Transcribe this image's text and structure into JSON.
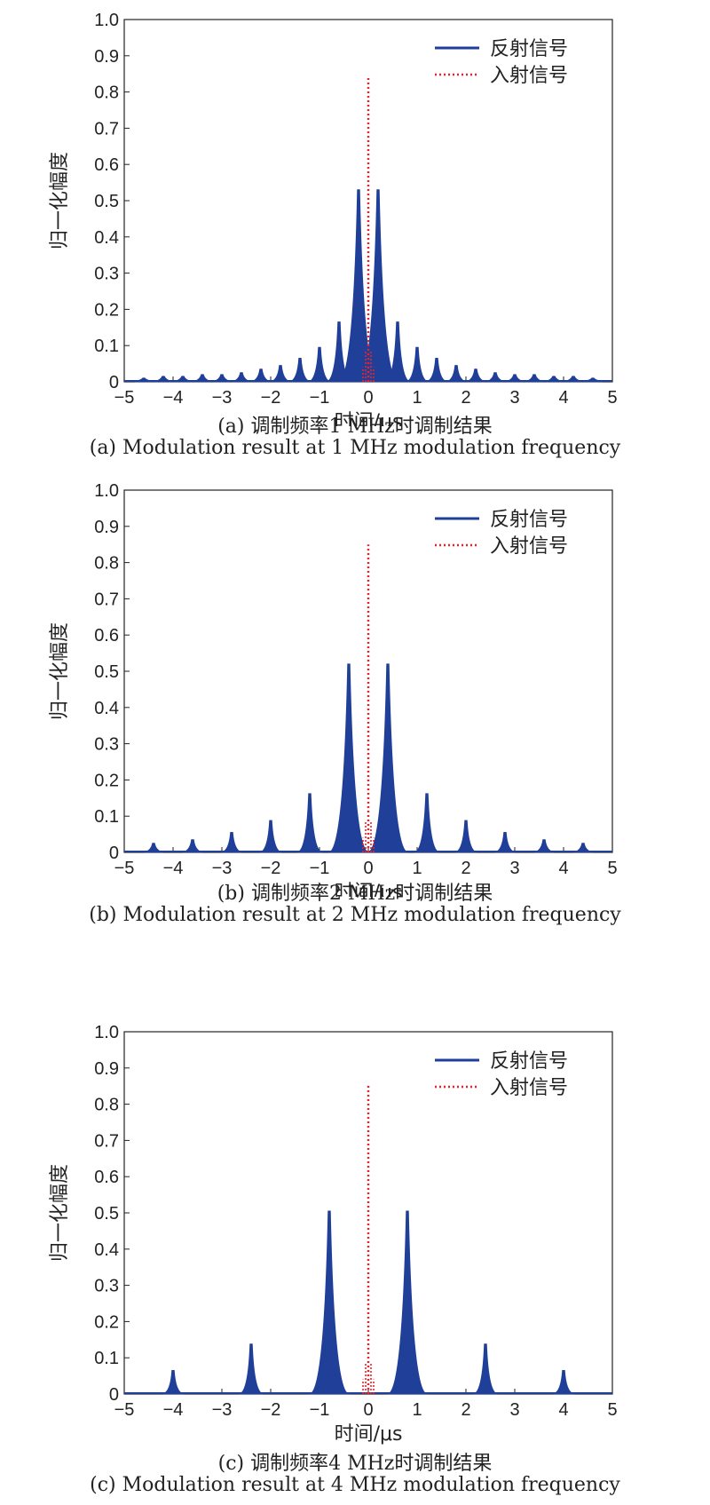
{
  "colors": {
    "reflected": "#1f3f99",
    "incident": "#e8222a",
    "axis": "#222222"
  },
  "panels": [
    {
      "caption_cn": "(a) 调制频率1 MHz时调制结果",
      "caption_en": "(a) Modulation result at 1 MHz modulation frequency",
      "chart_data": {
        "type": "line",
        "xlabel": "时间/μs",
        "ylabel": "归一化幅度",
        "xlim": [
          -5,
          5
        ],
        "ylim": [
          0,
          1.0
        ],
        "xticks": [
          "−5",
          "−4",
          "−3",
          "−2",
          "−1",
          "0",
          "1",
          "2",
          "3",
          "4",
          "5"
        ],
        "yticks": [
          "0",
          "0.1",
          "0.2",
          "0.3",
          "0.4",
          "0.5",
          "0.6",
          "0.7",
          "0.8",
          "0.9",
          "1.0"
        ],
        "legend_position": "top-right",
        "series": [
          {
            "name": "反射信号",
            "style": "solid",
            "peaks_x": [
              -4.6,
              -4.2,
              -3.8,
              -3.4,
              -3.0,
              -2.6,
              -2.2,
              -1.8,
              -1.4,
              -1.0,
              -0.6,
              -0.2,
              0.2,
              0.6,
              1.0,
              1.4,
              1.8,
              2.2,
              2.6,
              3.0,
              3.4,
              3.8,
              4.2,
              4.6
            ],
            "peaks_y": [
              0.01,
              0.015,
              0.015,
              0.02,
              0.02,
              0.025,
              0.035,
              0.045,
              0.065,
              0.095,
              0.165,
              0.53,
              0.53,
              0.165,
              0.095,
              0.065,
              0.045,
              0.035,
              0.025,
              0.02,
              0.02,
              0.015,
              0.015,
              0.01
            ]
          },
          {
            "name": "入射信号",
            "style": "dotted",
            "peaks_x": [
              0
            ],
            "peaks_y": [
              0.84
            ]
          }
        ]
      }
    },
    {
      "caption_cn": "(b) 调制频率2 MHz时调制结果",
      "caption_en": "(b) Modulation result at 2 MHz modulation frequency",
      "chart_data": {
        "type": "line",
        "xlabel": "时间/μs",
        "ylabel": "归一化幅度",
        "xlim": [
          -5,
          5
        ],
        "ylim": [
          0,
          1.0
        ],
        "xticks": [
          "−5",
          "−4",
          "−3",
          "−2",
          "−1",
          "0",
          "1",
          "2",
          "3",
          "4",
          "5"
        ],
        "yticks": [
          "0",
          "0.1",
          "0.2",
          "0.3",
          "0.4",
          "0.5",
          "0.6",
          "0.7",
          "0.8",
          "0.9",
          "1.0"
        ],
        "legend_position": "top-right",
        "series": [
          {
            "name": "反射信号",
            "style": "solid",
            "peaks_x": [
              -4.4,
              -3.6,
              -2.8,
              -2.0,
              -1.2,
              -0.4,
              0.4,
              1.2,
              2.0,
              2.8,
              3.6,
              4.4
            ],
            "peaks_y": [
              0.025,
              0.035,
              0.055,
              0.088,
              0.162,
              0.52,
              0.52,
              0.162,
              0.088,
              0.055,
              0.035,
              0.025
            ]
          },
          {
            "name": "入射信号",
            "style": "dotted",
            "peaks_x": [
              0
            ],
            "peaks_y": [
              0.85
            ]
          }
        ]
      }
    },
    {
      "caption_cn": "(c) 调制频率4 MHz时调制结果",
      "caption_en": "(c) Modulation result at 4 MHz modulation frequency",
      "chart_data": {
        "type": "line",
        "xlabel": "时间/μs",
        "ylabel": "归一化幅度",
        "xlim": [
          -5,
          5
        ],
        "ylim": [
          0,
          1.0
        ],
        "xticks": [
          "−5",
          "−4",
          "−3",
          "−2",
          "−1",
          "0",
          "1",
          "2",
          "3",
          "4",
          "5"
        ],
        "yticks": [
          "0",
          "0.1",
          "0.2",
          "0.3",
          "0.4",
          "0.5",
          "0.6",
          "0.7",
          "0.8",
          "0.9",
          "1.0"
        ],
        "legend_position": "top-right",
        "series": [
          {
            "name": "反射信号",
            "style": "solid",
            "peaks_x": [
              -4.0,
              -2.4,
              -0.8,
              0.8,
              2.4,
              4.0
            ],
            "peaks_y": [
              0.065,
              0.138,
              0.505,
              0.505,
              0.138,
              0.065
            ]
          },
          {
            "name": "入射信号",
            "style": "dotted",
            "peaks_x": [
              0
            ],
            "peaks_y": [
              0.855
            ]
          }
        ]
      }
    }
  ]
}
